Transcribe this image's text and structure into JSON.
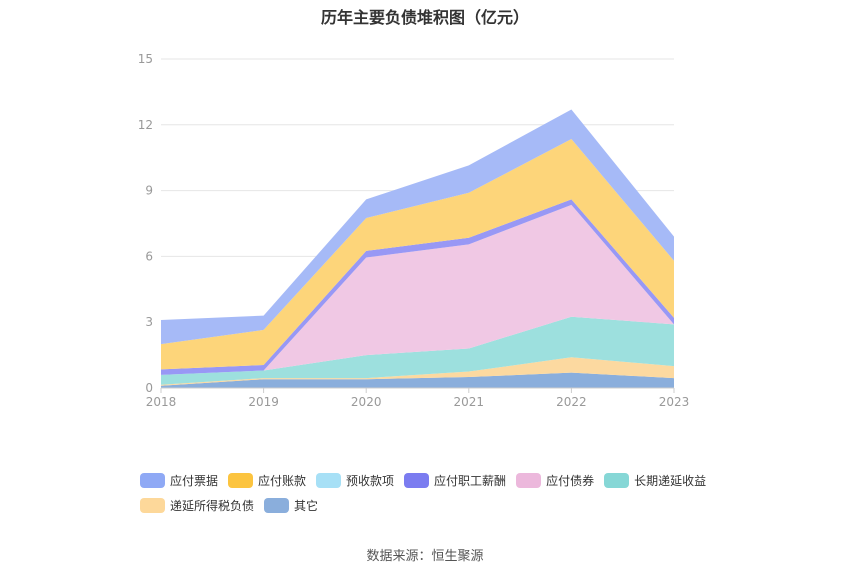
{
  "chart_data": {
    "type": "area",
    "stacked": true,
    "title": "历年主要负债堆积图（亿元）",
    "x": [
      "2018",
      "2019",
      "2020",
      "2021",
      "2022",
      "2023"
    ],
    "ylim": [
      0,
      15
    ],
    "yticks": [
      "0",
      "3",
      "6",
      "9",
      "12",
      "15"
    ],
    "grid": true,
    "legend_position": "bottom",
    "series": [
      {
        "name": "其它",
        "color": "#8aaedc",
        "values": [
          0.1,
          0.4,
          0.4,
          0.5,
          0.7,
          0.45
        ]
      },
      {
        "name": "递延所得税负债",
        "color": "#fcd9a0",
        "values": [
          0.05,
          0.05,
          0.05,
          0.25,
          0.7,
          0.55
        ]
      },
      {
        "name": "长期递延收益",
        "color": "#9de0de",
        "values": [
          0.45,
          0.35,
          1.05,
          1.05,
          1.85,
          1.9
        ]
      },
      {
        "name": "应付债券",
        "color": "#f0c8e4",
        "values": [
          0,
          0,
          4.45,
          4.75,
          5.1,
          0
        ]
      },
      {
        "name": "应付职工薪酬",
        "color": "#9898f5",
        "values": [
          0.25,
          0.25,
          0.3,
          0.3,
          0.25,
          0.3
        ]
      },
      {
        "name": "预收款项",
        "color": "#b3e0f5",
        "values": [
          0,
          0,
          0,
          0,
          0,
          0
        ]
      },
      {
        "name": "应付账款",
        "color": "#fdd57a",
        "values": [
          1.15,
          1.6,
          1.5,
          2.05,
          2.75,
          2.6
        ]
      },
      {
        "name": "应付票据",
        "color": "#a6baf7",
        "values": [
          1.1,
          0.65,
          0.85,
          1.25,
          1.35,
          1.1
        ]
      }
    ],
    "legend_order": [
      "应付票据",
      "应付账款",
      "预收款项",
      "应付职工薪酬",
      "应付债券",
      "长期递延收益",
      "递延所得税负债",
      "其它"
    ],
    "legend_colors": {
      "应付票据": "#8fa9f5",
      "应付账款": "#fcc43f",
      "预收款项": "#a7e0f6",
      "应付职工薪酬": "#7b7cf0",
      "应付债券": "#ecb8dc",
      "长期递延收益": "#86d7d6",
      "递延所得税负债": "#fdd89a",
      "其它": "#8aaedc"
    }
  },
  "footer": {
    "source": "数据来源：恒生聚源"
  }
}
